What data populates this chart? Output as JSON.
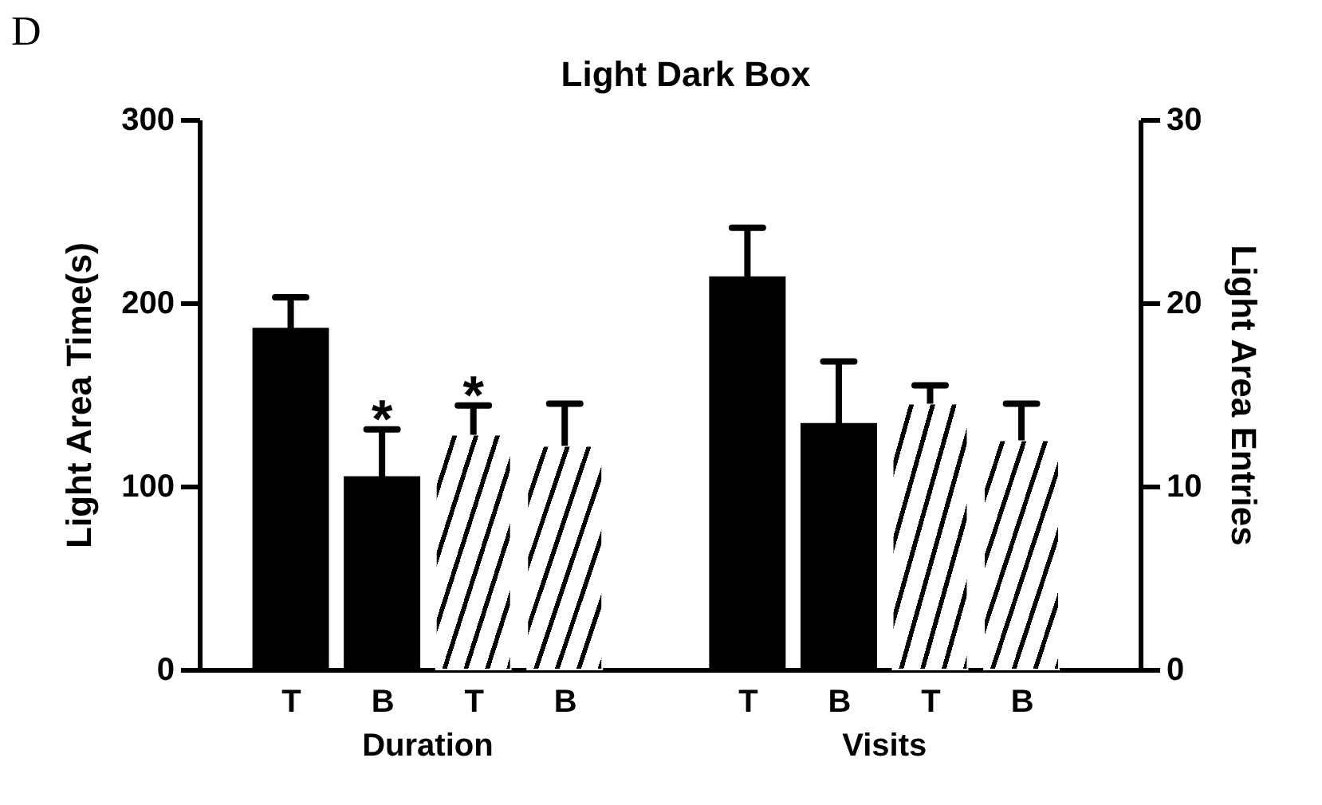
{
  "chart_data": {
    "type": "bar",
    "title": "Light Dark Box",
    "ylabel": "Light Area Time(s)",
    "y2label": "Light Area Entries",
    "categories": [
      "T",
      "B",
      "T",
      "B",
      "T",
      "B",
      "T",
      "B"
    ],
    "series": [
      {
        "name": "Duration",
        "colors": [
          "#000000",
          "#000000",
          "#ffffff",
          "#ffffff",
          null,
          null,
          null,
          null
        ],
        "values": [
          186,
          105,
          128,
          122,
          null,
          null,
          null,
          null
        ],
        "errors": [
          [
            186,
            203
          ],
          [
            105,
            131
          ],
          [
            128,
            144
          ],
          [
            122,
            145
          ],
          null,
          null,
          null,
          null
        ],
        "value_labels": [
          null,
          "*",
          "*",
          null,
          null,
          null,
          null,
          null
        ]
      },
      {
        "name": "Visits",
        "axis": "y2",
        "colors": [
          null,
          null,
          null,
          null,
          "#000000",
          "#000000",
          "#ffffff",
          "#ffffff"
        ],
        "values": [
          null,
          null,
          null,
          null,
          21.4,
          13.4,
          14.5,
          12.5
        ],
        "errors": [
          null,
          null,
          null,
          null,
          [
            21.4,
            24.1
          ],
          [
            13.4,
            16.8
          ],
          [
            14.5,
            15.5
          ],
          [
            12.5,
            14.5
          ]
        ]
      }
    ],
    "ylim": [
      0,
      300
    ],
    "yticks": [
      0,
      100,
      200,
      300
    ],
    "y2lim": [
      0,
      30
    ],
    "y2ticks": [
      0,
      10,
      20,
      30
    ],
    "grid": false,
    "annotations": [
      "D"
    ]
  }
}
